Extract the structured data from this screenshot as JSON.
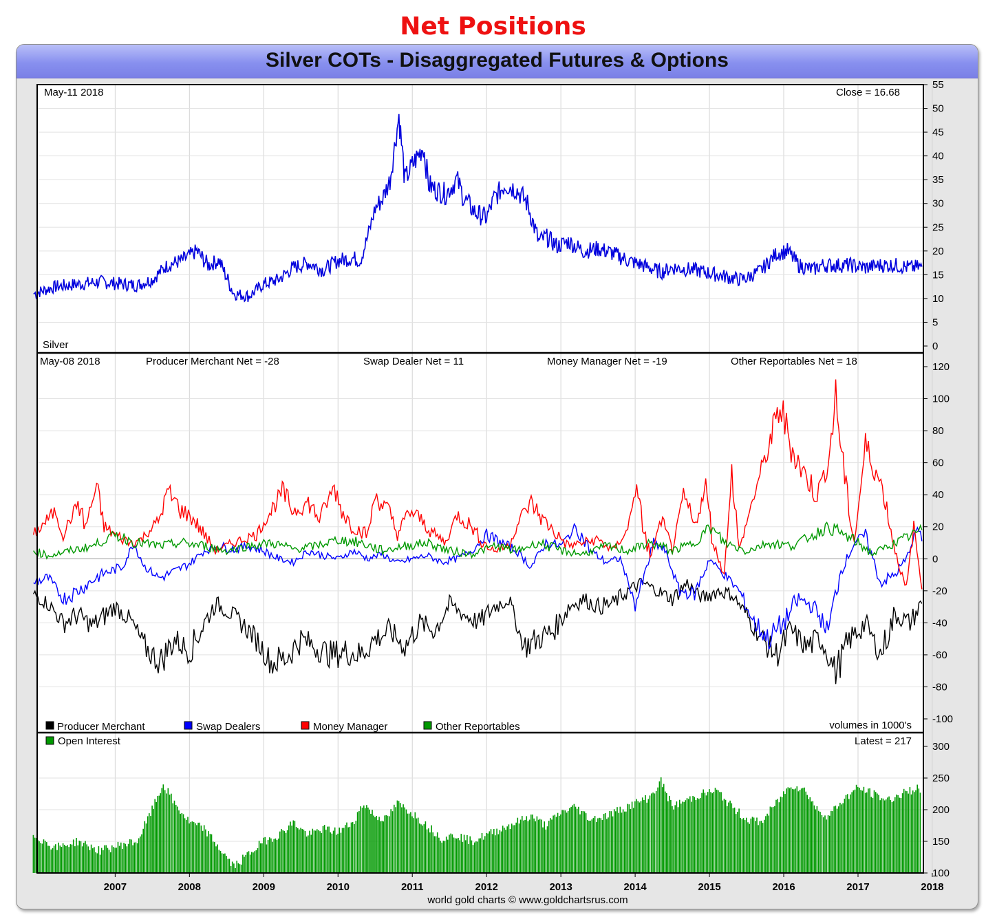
{
  "heading": "Net Positions",
  "title": "Silver COTs - Disaggregated Futures & Options",
  "footer": "world gold charts © www.goldchartsrus.com",
  "colors": {
    "heading": "#ee1111",
    "price": "#0000dd",
    "producer_merchant": "#000000",
    "swap_dealers": "#0000ff",
    "money_manager": "#ff0000",
    "other_reportables": "#009900",
    "open_interest": "#009900"
  },
  "chart_data": [
    {
      "type": "line",
      "panel": "price",
      "date_label": "May-11  2018",
      "close_label": "Close = 16.68",
      "series_label": "Silver",
      "ylim": [
        0,
        55
      ],
      "yticks": [
        0,
        5,
        10,
        15,
        20,
        25,
        30,
        35,
        40,
        45,
        50,
        55
      ],
      "x": [
        2006.4,
        2006.7,
        2007.0,
        2007.3,
        2007.6,
        2007.8,
        2008.0,
        2008.2,
        2008.4,
        2008.6,
        2008.75,
        2008.9,
        2009.1,
        2009.3,
        2009.5,
        2009.7,
        2009.9,
        2010.1,
        2010.3,
        2010.5,
        2010.7,
        2010.8,
        2010.9,
        2011.0,
        2011.1,
        2011.2,
        2011.32,
        2011.4,
        2011.5,
        2011.65,
        2011.72,
        2011.8,
        2011.95,
        2012.1,
        2012.2,
        2012.35,
        2012.5,
        2012.6,
        2012.75,
        2012.9,
        2013.05,
        2013.2,
        2013.3,
        2013.45,
        2013.6,
        2013.8,
        2014.0,
        2014.2,
        2014.4,
        2014.6,
        2014.85,
        2015.0,
        2015.3,
        2015.6,
        2015.9,
        2016.0,
        2016.2,
        2016.4,
        2016.55,
        2016.7,
        2016.9,
        2017.0,
        2017.2,
        2017.4,
        2017.6,
        2017.8,
        2018.0,
        2018.2,
        2018.36
      ],
      "y": [
        11.0,
        12.5,
        13.0,
        13.5,
        13.0,
        12.8,
        14.0,
        17.0,
        18.0,
        20.0,
        17.0,
        18.0,
        11.0,
        10.5,
        13.0,
        14.0,
        16.5,
        17.5,
        16.0,
        18.0,
        18.5,
        18.0,
        23.0,
        29.0,
        31.0,
        35.0,
        48.5,
        35.0,
        38.0,
        42.0,
        34.0,
        33.0,
        32.0,
        35.0,
        31.0,
        28.0,
        27.0,
        31.0,
        34.0,
        33.0,
        30.0,
        22.0,
        23.0,
        21.0,
        22.0,
        20.0,
        20.5,
        19.5,
        18.0,
        17.0,
        15.5,
        16.5,
        16.0,
        15.0,
        14.0,
        14.3,
        16.0,
        19.5,
        20.0,
        17.0,
        16.0,
        17.0,
        17.0,
        17.0,
        16.5,
        17.0,
        17.0,
        16.5,
        16.7
      ]
    },
    {
      "type": "line",
      "panel": "net-positions",
      "date_label": "May-08  2018",
      "labels": [
        "Producer Merchant Net = -28",
        "Swap Dealer Net = 11",
        "Money Manager Net = -19",
        "Other Reportables Net = 18"
      ],
      "ylim": [
        -100,
        120
      ],
      "yticks": [
        -100,
        -80,
        -60,
        -40,
        -20,
        0,
        20,
        40,
        60,
        80,
        100,
        120
      ],
      "note": "volumes in 1000's",
      "series": [
        {
          "name": "Producer Merchant",
          "x": [
            2006.4,
            2006.6,
            2006.8,
            2007.0,
            2007.2,
            2007.5,
            2007.7,
            2007.9,
            2008.1,
            2008.3,
            2008.5,
            2008.7,
            2008.85,
            2009.0,
            2009.2,
            2009.4,
            2009.6,
            2009.8,
            2010.0,
            2010.2,
            2010.4,
            2010.6,
            2010.8,
            2011.0,
            2011.2,
            2011.4,
            2011.6,
            2011.8,
            2012.0,
            2012.2,
            2012.4,
            2012.6,
            2012.8,
            2013.0,
            2013.2,
            2013.4,
            2013.6,
            2013.8,
            2014.0,
            2014.2,
            2014.4,
            2014.6,
            2014.8,
            2015.0,
            2015.2,
            2015.4,
            2015.6,
            2015.8,
            2016.0,
            2016.2,
            2016.4,
            2016.6,
            2016.8,
            2017.0,
            2017.2,
            2017.4,
            2017.6,
            2017.8,
            2018.0,
            2018.2,
            2018.36
          ],
          "y": [
            -22,
            -28,
            -40,
            -35,
            -42,
            -30,
            -38,
            -55,
            -65,
            -50,
            -58,
            -40,
            -28,
            -32,
            -40,
            -50,
            -65,
            -62,
            -50,
            -55,
            -60,
            -58,
            -60,
            -50,
            -45,
            -55,
            -40,
            -45,
            -28,
            -35,
            -40,
            -30,
            -25,
            -55,
            -50,
            -45,
            -30,
            -25,
            -30,
            -28,
            -20,
            -15,
            -20,
            -25,
            -15,
            -25,
            -20,
            -22,
            -35,
            -50,
            -60,
            -45,
            -55,
            -50,
            -70,
            -50,
            -40,
            -60,
            -35,
            -40,
            -28
          ]
        },
        {
          "name": "Swap Dealers",
          "x": [
            2006.4,
            2006.6,
            2006.8,
            2007.0,
            2007.3,
            2007.6,
            2007.75,
            2007.9,
            2008.1,
            2008.3,
            2008.5,
            2008.7,
            2008.9,
            2009.1,
            2009.3,
            2009.5,
            2009.7,
            2009.9,
            2010.1,
            2010.3,
            2010.5,
            2010.7,
            2010.9,
            2011.1,
            2011.3,
            2011.5,
            2011.7,
            2011.9,
            2012.1,
            2012.3,
            2012.5,
            2012.7,
            2012.9,
            2013.1,
            2013.3,
            2013.5,
            2013.7,
            2013.9,
            2014.1,
            2014.3,
            2014.5,
            2014.6,
            2014.75,
            2014.9,
            2015.1,
            2015.3,
            2015.5,
            2015.7,
            2015.9,
            2016.1,
            2016.3,
            2016.5,
            2016.7,
            2016.9,
            2017.1,
            2017.25,
            2017.45,
            2017.6,
            2017.8,
            2018.0,
            2018.15,
            2018.3,
            2018.36
          ],
          "y": [
            -15,
            -12,
            -25,
            -20,
            -10,
            -5,
            10,
            -5,
            -12,
            -8,
            -3,
            5,
            8,
            6,
            8,
            5,
            0,
            -2,
            5,
            2,
            0,
            5,
            0,
            3,
            -3,
            0,
            2,
            -2,
            0,
            5,
            15,
            10,
            5,
            -5,
            10,
            8,
            20,
            5,
            -2,
            0,
            -28,
            -15,
            10,
            5,
            -20,
            -22,
            0,
            -10,
            -20,
            -40,
            -50,
            -40,
            -25,
            -30,
            -45,
            -10,
            10,
            15,
            -15,
            -10,
            0,
            20,
            11
          ]
        },
        {
          "name": "Money Manager",
          "x": [
            2006.4,
            2006.5,
            2006.7,
            2006.8,
            2007.0,
            2007.1,
            2007.25,
            2007.35,
            2007.5,
            2007.7,
            2007.85,
            2008.1,
            2008.2,
            2008.4,
            2008.55,
            2008.7,
            2008.85,
            2009.0,
            2009.2,
            2009.4,
            2009.6,
            2009.75,
            2009.9,
            2010.1,
            2010.25,
            2010.45,
            2010.55,
            2010.7,
            2010.9,
            2011.0,
            2011.2,
            2011.3,
            2011.45,
            2011.6,
            2011.8,
            2011.95,
            2012.1,
            2012.3,
            2012.45,
            2012.6,
            2012.8,
            2012.95,
            2013.1,
            2013.25,
            2013.45,
            2013.6,
            2013.8,
            2014.0,
            2014.2,
            2014.4,
            2014.5,
            2014.7,
            2014.85,
            2015.0,
            2015.15,
            2015.3,
            2015.45,
            2015.55,
            2015.7,
            2015.8,
            2015.9,
            2016.1,
            2016.3,
            2016.45,
            2016.6,
            2016.75,
            2016.95,
            2017.1,
            2017.2,
            2017.32,
            2017.45,
            2017.6,
            2017.7,
            2017.85,
            2018.0,
            2018.15,
            2018.25,
            2018.36
          ],
          "y": [
            15,
            20,
            30,
            15,
            35,
            20,
            45,
            20,
            15,
            10,
            12,
            25,
            42,
            30,
            25,
            15,
            5,
            8,
            12,
            15,
            30,
            42,
            30,
            35,
            25,
            45,
            30,
            20,
            15,
            40,
            28,
            15,
            30,
            25,
            15,
            10,
            28,
            20,
            10,
            5,
            8,
            25,
            35,
            25,
            15,
            8,
            10,
            12,
            5,
            18,
            45,
            0,
            25,
            5,
            40,
            20,
            45,
            10,
            -10,
            55,
            5,
            40,
            70,
            95,
            70,
            55,
            40,
            60,
            100,
            50,
            10,
            70,
            60,
            40,
            5,
            -20,
            20,
            -19
          ]
        },
        {
          "name": "Other Reportables",
          "x": [
            2006.4,
            2006.6,
            2006.9,
            2007.2,
            2007.5,
            2007.8,
            2008.1,
            2008.4,
            2008.7,
            2009.0,
            2009.3,
            2009.6,
            2009.9,
            2010.2,
            2010.5,
            2010.8,
            2011.1,
            2011.4,
            2011.7,
            2012.0,
            2012.3,
            2012.6,
            2012.9,
            2013.2,
            2013.5,
            2013.8,
            2014.1,
            2014.4,
            2014.7,
            2015.0,
            2015.3,
            2015.5,
            2015.7,
            2016.0,
            2016.3,
            2016.6,
            2016.9,
            2017.1,
            2017.3,
            2017.5,
            2017.7,
            2017.9,
            2018.1,
            2018.36
          ],
          "y": [
            5,
            2,
            5,
            8,
            15,
            10,
            8,
            10,
            8,
            5,
            8,
            10,
            6,
            8,
            12,
            10,
            5,
            8,
            10,
            5,
            3,
            8,
            5,
            10,
            5,
            3,
            8,
            5,
            10,
            5,
            10,
            20,
            10,
            5,
            10,
            8,
            15,
            20,
            15,
            10,
            3,
            8,
            12,
            18
          ]
        }
      ]
    },
    {
      "type": "bar",
      "panel": "open-interest",
      "label": "Open Interest",
      "latest_label": "Latest = 217",
      "ylim": [
        100,
        300
      ],
      "yticks": [
        100,
        150,
        200,
        250,
        300
      ],
      "x": [
        2006.4,
        2006.7,
        2007.0,
        2007.3,
        2007.6,
        2007.8,
        2008.0,
        2008.15,
        2008.3,
        2008.5,
        2008.7,
        2008.9,
        2009.1,
        2009.3,
        2009.5,
        2009.7,
        2009.9,
        2010.1,
        2010.3,
        2010.5,
        2010.7,
        2010.85,
        2011.0,
        2011.15,
        2011.3,
        2011.5,
        2011.7,
        2011.9,
        2012.1,
        2012.3,
        2012.5,
        2012.7,
        2012.9,
        2013.1,
        2013.3,
        2013.5,
        2013.7,
        2013.9,
        2014.1,
        2014.3,
        2014.5,
        2014.7,
        2014.85,
        2015.0,
        2015.2,
        2015.4,
        2015.6,
        2015.8,
        2016.0,
        2016.2,
        2016.4,
        2016.6,
        2016.8,
        2016.95,
        2017.1,
        2017.3,
        2017.5,
        2017.7,
        2017.9,
        2018.1,
        2018.3,
        2018.36
      ],
      "y": [
        160,
        140,
        150,
        135,
        145,
        150,
        200,
        240,
        210,
        180,
        170,
        140,
        110,
        130,
        150,
        160,
        180,
        160,
        170,
        165,
        180,
        210,
        190,
        185,
        210,
        195,
        175,
        155,
        160,
        150,
        160,
        170,
        180,
        190,
        175,
        195,
        205,
        185,
        190,
        200,
        210,
        220,
        245,
        205,
        215,
        225,
        230,
        205,
        185,
        180,
        210,
        240,
        230,
        200,
        190,
        215,
        235,
        225,
        215,
        225,
        235,
        217
      ]
    }
  ],
  "xaxis": {
    "years": [
      "2007",
      "2008",
      "2009",
      "2010",
      "2011",
      "2012",
      "2013",
      "2014",
      "2015",
      "2016",
      "2017",
      "2018"
    ]
  },
  "legend": [
    "Producer Merchant",
    "Swap Dealers",
    "Money Manager",
    "Other Reportables"
  ]
}
